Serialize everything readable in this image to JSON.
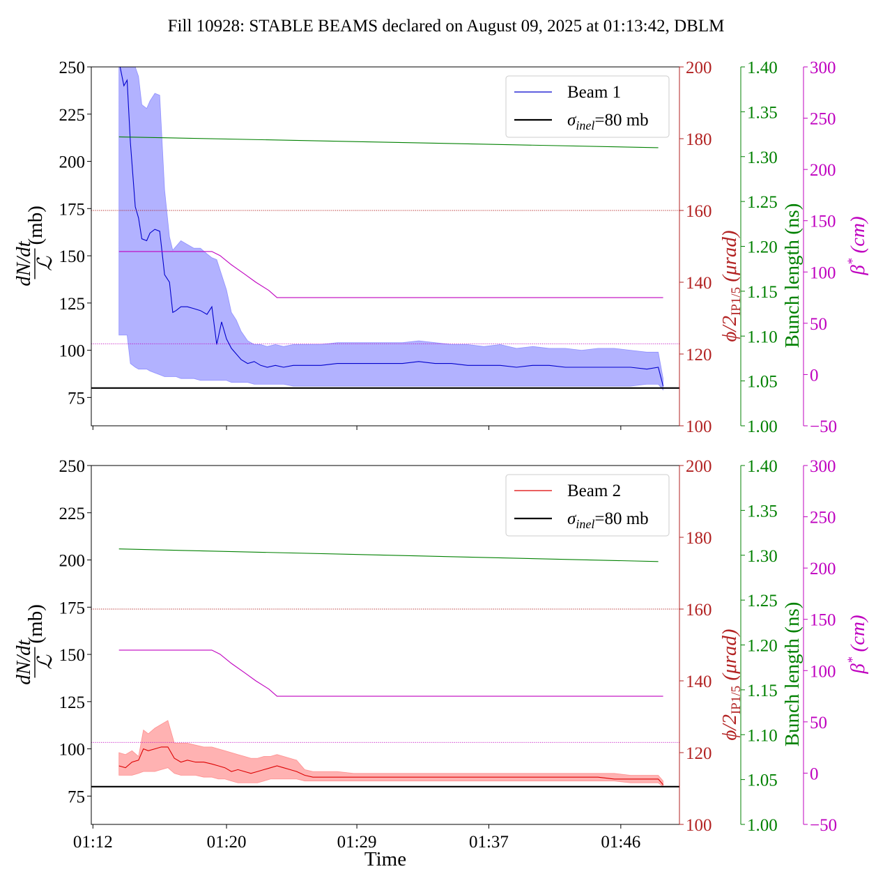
{
  "title": "Fill 10928: STABLE BEAMS declared on August 09, 2025 at 01:13:42, DBLM",
  "chart_data": {
    "type": "line",
    "xlabel": "Time",
    "x_ticks": [
      "01:12",
      "01:20",
      "01:29",
      "01:37",
      "01:46"
    ],
    "x_tick_minutes": [
      12.0,
      20.2,
      28.2,
      36.3,
      44.4
    ],
    "xlim_minutes": [
      11.9,
      48.0
    ],
    "axes": {
      "left": {
        "label_num": "dN/dt",
        "label_den": "ℒ",
        "label_unit": "(mb)",
        "ylim": [
          60,
          250
        ],
        "ticks": [
          "75",
          "100",
          "125",
          "150",
          "175",
          "200",
          "225",
          "250"
        ],
        "tick_values": [
          75,
          100,
          125,
          150,
          175,
          200,
          225,
          250
        ],
        "color": "#000000"
      },
      "right1": {
        "label_main": "ϕ/2",
        "label_sub": "IP1/5",
        "label_unit": " (μrad)",
        "ylim": [
          100,
          200
        ],
        "ticks": [
          "100",
          "120",
          "140",
          "160",
          "180",
          "200"
        ],
        "tick_values": [
          100,
          120,
          140,
          160,
          180,
          200
        ],
        "color": "#b22222"
      },
      "right2": {
        "label": "Bunch length (ns)",
        "ylim": [
          1.0,
          1.4
        ],
        "ticks": [
          "1.00",
          "1.05",
          "1.10",
          "1.15",
          "1.20",
          "1.25",
          "1.30",
          "1.35",
          "1.40"
        ],
        "tick_values": [
          1.0,
          1.05,
          1.1,
          1.15,
          1.2,
          1.25,
          1.3,
          1.35,
          1.4
        ],
        "color": "#008000"
      },
      "right3": {
        "label_main": "β",
        "label_sup": "*",
        "label_unit": " (cm)",
        "ylim": [
          -50,
          300
        ],
        "ticks": [
          "−50",
          "0",
          "50",
          "100",
          "150",
          "200",
          "250",
          "300"
        ],
        "tick_values": [
          -50,
          0,
          50,
          100,
          150,
          200,
          250,
          300
        ],
        "color": "#bf00bf"
      }
    },
    "panels": [
      {
        "legend": [
          {
            "label": "Beam 1",
            "color": "#0000cc"
          },
          {
            "label_main": "σ",
            "label_sub": "inel",
            "label_rest": "=80 mb",
            "color": "#000000"
          }
        ],
        "series": [
          {
            "name": "Beam 1",
            "axis": "left",
            "color": "#0000cc",
            "band_color": "#6666ff",
            "x": [
              13.6,
              13.9,
              14.1,
              14.3,
              14.6,
              14.8,
              15.0,
              15.3,
              15.5,
              15.8,
              16.1,
              16.4,
              16.7,
              16.9,
              17.1,
              17.4,
              17.8,
              18.2,
              18.6,
              19.0,
              19.3,
              19.6,
              19.9,
              20.2,
              20.5,
              20.8,
              21.1,
              21.5,
              21.9,
              22.3,
              22.7,
              23.2,
              23.7,
              24.3,
              25.0,
              26.0,
              27.0,
              28.0,
              29.0,
              30.0,
              31.0,
              32.0,
              33.0,
              34.0,
              35.0,
              36.0,
              37.0,
              38.0,
              39.0,
              40.0,
              41.0,
              42.0,
              43.0,
              44.0,
              45.0,
              46.0,
              46.7,
              47.0
            ],
            "y": [
              253,
              240,
              243,
              210,
              176,
              170,
              159,
              158,
              162,
              164,
              163,
              140,
              136,
              120,
              121,
              123,
              123,
              122,
              121,
              119,
              123,
              103,
              115,
              106,
              101,
              98,
              95,
              93,
              94,
              92,
              91,
              92,
              91,
              92,
              92,
              92,
              93,
              93,
              93,
              93,
              93,
              94,
              93,
              93,
              92,
              92,
              92,
              91,
              92,
              92,
              91,
              91,
              91,
              91,
              91,
              90,
              91,
              81
            ],
            "upper": [
              270,
              268,
              265,
              255,
              250,
              245,
              230,
              228,
              232,
              236,
              235,
              185,
              160,
              153,
              155,
              158,
              156,
              154,
              154,
              151,
              149,
              148,
              140,
              132,
              120,
              116,
              110,
              105,
              103,
              103,
              102,
              103,
              102,
              103,
              103,
              103,
              104,
              104,
              104,
              104,
              104,
              105,
              104,
              103,
              103,
              102,
              103,
              101,
              102,
              101,
              101,
              100,
              101,
              101,
              100,
              99,
              99,
              85
            ],
            "lower": [
              108,
              108,
              108,
              93,
              91,
              90,
              90,
              90,
              89,
              88,
              87,
              86,
              86,
              86,
              86,
              85,
              85,
              85,
              84,
              84,
              84,
              84,
              84,
              84,
              83,
              83,
              83,
              83,
              82,
              82,
              82,
              82,
              82,
              81,
              81,
              81,
              81,
              81,
              81,
              81,
              81,
              81,
              81,
              81,
              81,
              81,
              81,
              81,
              81,
              81,
              81,
              81,
              81,
              81,
              81,
              82,
              82,
              79
            ]
          },
          {
            "name": "Bunch length",
            "axis": "right2",
            "color": "#008000",
            "x": [
              13.6,
              46.7
            ],
            "y": [
              1.322,
              1.31
            ]
          },
          {
            "name": "β*",
            "axis": "right3",
            "color": "#bf00bf",
            "x": [
              13.6,
              19.3,
              19.8,
              20.5,
              21.3,
              22.0,
              22.8,
              23.3,
              47.0
            ],
            "y": [
              120,
              120,
              116,
              107,
              98,
              90,
              82,
              75,
              75
            ]
          },
          {
            "name": "crossing",
            "axis": "right1",
            "color": "#b22222",
            "dashed": true,
            "x": [
              11.9,
              48.0
            ],
            "y": [
              160,
              160
            ]
          },
          {
            "name": "β* ref",
            "axis": "right3",
            "color": "#bf00bf",
            "dashed": true,
            "x": [
              11.9,
              48.0
            ],
            "y": [
              30,
              30
            ]
          },
          {
            "name": "σinel",
            "axis": "left",
            "color": "#000000",
            "thick": true,
            "x": [
              11.9,
              48.0
            ],
            "y": [
              80,
              80
            ]
          }
        ]
      },
      {
        "legend": [
          {
            "label": "Beam 2",
            "color": "#dd0000"
          },
          {
            "label_main": "σ",
            "label_sub": "inel",
            "label_rest": "=80 mb",
            "color": "#000000"
          }
        ],
        "series": [
          {
            "name": "Beam 2",
            "axis": "left",
            "color": "#dd0000",
            "band_color": "#ff6666",
            "x": [
              13.6,
              14.0,
              14.4,
              14.8,
              15.1,
              15.4,
              15.8,
              16.2,
              16.6,
              17.0,
              17.4,
              17.8,
              18.3,
              18.8,
              19.3,
              19.7,
              20.1,
              20.5,
              20.9,
              21.3,
              21.7,
              22.1,
              22.5,
              22.9,
              23.3,
              23.7,
              24.1,
              24.5,
              25.0,
              25.5,
              26.0,
              27.0,
              28.0,
              29.0,
              30.0,
              31.0,
              32.0,
              33.0,
              34.0,
              35.0,
              36.0,
              37.0,
              38.0,
              39.0,
              40.0,
              41.0,
              42.0,
              43.0,
              44.0,
              45.0,
              46.0,
              46.7,
              47.0
            ],
            "y": [
              91,
              90,
              93,
              94,
              100,
              99,
              100,
              101,
              101,
              95,
              93,
              94,
              93,
              93,
              92,
              91,
              90,
              88,
              89,
              88,
              87,
              88,
              89,
              90,
              91,
              90,
              89,
              88,
              86,
              85,
              85,
              85,
              85,
              85,
              85,
              85,
              85,
              85,
              85,
              85,
              85,
              85,
              85,
              85,
              85,
              85,
              85,
              85,
              84,
              84,
              84,
              84,
              81
            ],
            "upper": [
              98,
              97,
              99,
              96,
              110,
              108,
              111,
              113,
              115,
              103,
              103,
              103,
              102,
              101,
              101,
              100,
              99,
              98,
              97,
              96,
              95,
              95,
              96,
              96,
              97,
              96,
              95,
              94,
              89,
              88,
              88,
              88,
              87,
              87,
              87,
              87,
              87,
              87,
              87,
              87,
              87,
              87,
              87,
              87,
              87,
              87,
              87,
              87,
              87,
              86,
              86,
              86,
              83
            ],
            "lower": [
              86,
              86,
              86,
              87,
              88,
              88,
              88,
              89,
              90,
              87,
              86,
              86,
              86,
              85,
              85,
              84,
              84,
              83,
              82,
              82,
              82,
              82,
              83,
              84,
              84,
              84,
              84,
              84,
              83,
              83,
              83,
              83,
              83,
              83,
              83,
              83,
              83,
              83,
              83,
              83,
              83,
              83,
              83,
              83,
              83,
              83,
              83,
              83,
              83,
              82,
              82,
              82,
              80
            ]
          },
          {
            "name": "Bunch length",
            "axis": "right2",
            "color": "#008000",
            "x": [
              13.6,
              46.7
            ],
            "y": [
              1.307,
              1.293
            ]
          },
          {
            "name": "β*",
            "axis": "right3",
            "color": "#bf00bf",
            "x": [
              13.6,
              19.3,
              19.8,
              20.5,
              21.3,
              22.0,
              22.8,
              23.3,
              47.0
            ],
            "y": [
              120,
              120,
              116,
              107,
              98,
              90,
              82,
              75,
              75
            ]
          },
          {
            "name": "crossing",
            "axis": "right1",
            "color": "#b22222",
            "dashed": true,
            "x": [
              11.9,
              48.0
            ],
            "y": [
              160,
              160
            ]
          },
          {
            "name": "β* ref",
            "axis": "right3",
            "color": "#bf00bf",
            "dashed": true,
            "x": [
              11.9,
              48.0
            ],
            "y": [
              30,
              30
            ]
          },
          {
            "name": "σinel",
            "axis": "left",
            "color": "#000000",
            "thick": true,
            "x": [
              11.9,
              48.0
            ],
            "y": [
              80,
              80
            ]
          }
        ]
      }
    ]
  }
}
